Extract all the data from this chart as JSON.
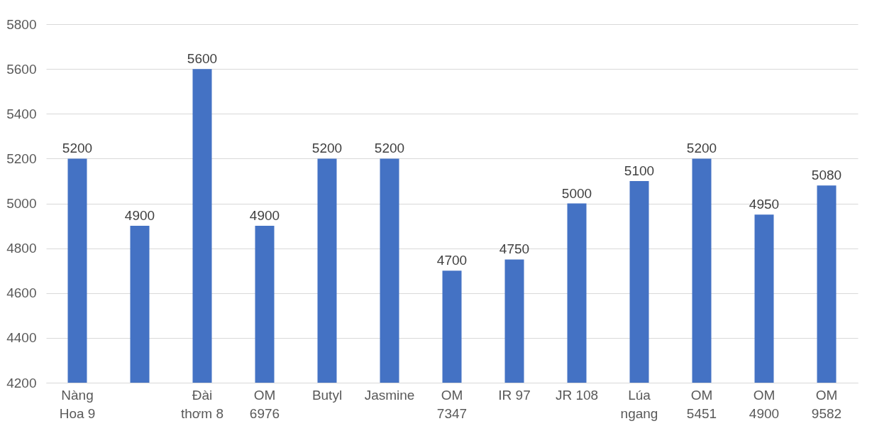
{
  "chart_data": {
    "type": "bar",
    "categories": [
      "Nàng Hoa 9",
      null,
      "Đài thơm 8",
      "OM 6976",
      "Butyl",
      "Jasmine",
      "OM 7347",
      "IR 97",
      "JR 108",
      "Lúa ngang",
      "OM 5451",
      "OM 4900",
      "OM 9582"
    ],
    "values": [
      5200,
      4900,
      5600,
      4900,
      5200,
      5200,
      4700,
      4750,
      5000,
      5100,
      5200,
      4950,
      5080
    ],
    "color": "#4472c4",
    "ylim": [
      4200,
      5800
    ],
    "yticks": [
      4200,
      4400,
      4600,
      4800,
      5000,
      5200,
      5400,
      5600,
      5800
    ],
    "grid": "y",
    "data_labels": true
  }
}
